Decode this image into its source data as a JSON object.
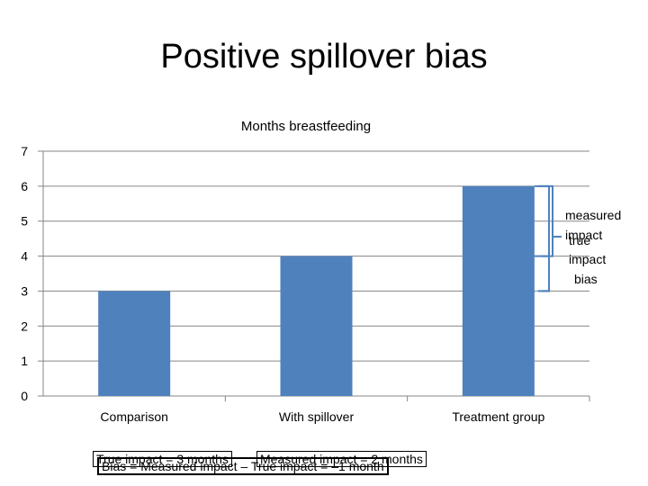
{
  "slide": {
    "title": "Positive spillover bias"
  },
  "chart_data": {
    "type": "bar",
    "title": "Months breastfeeding",
    "categories": [
      "Comparison",
      "With spillover",
      "Treatment group"
    ],
    "values": [
      3,
      4,
      6
    ],
    "ylim": [
      0,
      7
    ],
    "yticks": [
      "0",
      "1",
      "2",
      "3",
      "4",
      "5",
      "6",
      "7"
    ],
    "bar_color": "#4F81BD",
    "grid": true,
    "legend": "none"
  },
  "annotations": {
    "measured_line1": "measured",
    "measured_line2": "impact",
    "true_line1": "true",
    "true_line2": "impact",
    "bias": "bias"
  },
  "callouts": {
    "true_impact": "True impact = 3 months",
    "measured_impact": "Measured impact = 2 months",
    "bias_eq": "Bias = Measured impact – True impact = –1 month"
  },
  "colors": {
    "bracket": "#4F81BD",
    "axis": "#868686"
  }
}
